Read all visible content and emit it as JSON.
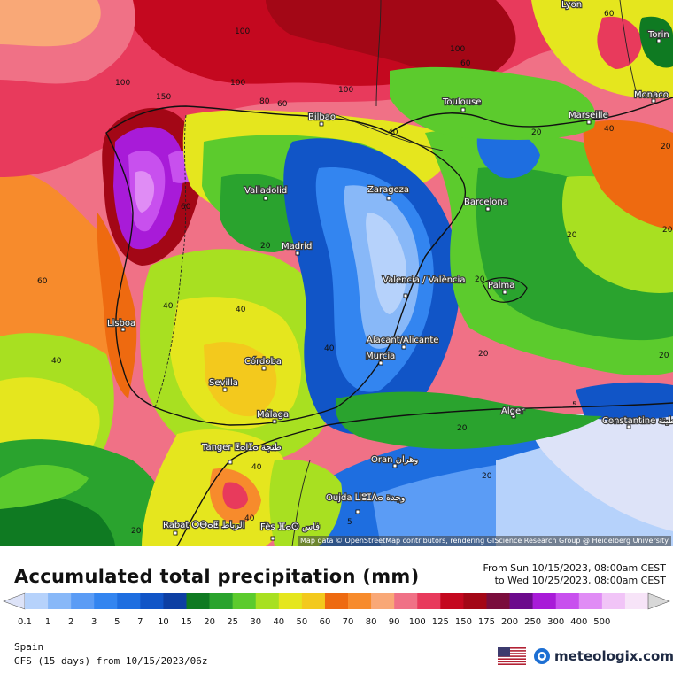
{
  "legend": {
    "title": "Accumulated total precipitation (mm)",
    "period_from": "From Sun 10/15/2023, 08:00am CEST",
    "period_to": "to Wed 10/25/2023, 08:00am CEST",
    "levels": [
      "0.1",
      "1",
      "2",
      "3",
      "5",
      "7",
      "10",
      "15",
      "20",
      "25",
      "30",
      "40",
      "50",
      "60",
      "70",
      "80",
      "90",
      "100",
      "125",
      "150",
      "175",
      "200",
      "250",
      "300",
      "400",
      "500"
    ],
    "colors": [
      "#dde3f8",
      "#b6d2fb",
      "#88b8f8",
      "#5b9cf5",
      "#3385f0",
      "#1e6ee0",
      "#1155c7",
      "#0d3fa3",
      "#0f7a22",
      "#2aa32e",
      "#5ccb2d",
      "#a8e021",
      "#e5e61e",
      "#f3c91d",
      "#ee6a10",
      "#f78b2c",
      "#f9a877",
      "#f07186",
      "#e83a5c",
      "#c4081f",
      "#a30716",
      "#7a0d3c",
      "#6c0a8c",
      "#a81bd8",
      "#c850ee",
      "#e08cf5",
      "#f1c4f7",
      "#f7e4f8",
      "#d8d8d8"
    ]
  },
  "footer": {
    "region": "Spain",
    "model": "GFS (15 days) from  10/15/2023/06z",
    "brand": "meteologix.com",
    "flag_icon": "us-flag-icon",
    "brand_icon": "meteologix-logo-icon"
  },
  "map": {
    "attribution": "Map data © OpenStreetMap contributors, rendering GIScience Research Group @ Heidelberg University",
    "cities": [
      {
        "name": "Lyon"
      },
      {
        "name": "Torin"
      },
      {
        "name": "Monaco"
      },
      {
        "name": "Toulouse"
      },
      {
        "name": "Marseille"
      },
      {
        "name": "Bilbao"
      },
      {
        "name": "Valladolid"
      },
      {
        "name": "Zaragoza"
      },
      {
        "name": "Barcelona"
      },
      {
        "name": "Madrid"
      },
      {
        "name": "Valencia / València"
      },
      {
        "name": "Palma"
      },
      {
        "name": "Lisboa"
      },
      {
        "name": "Alacant/Alicante"
      },
      {
        "name": "Murcia"
      },
      {
        "name": "Córdoba"
      },
      {
        "name": "Sevilla"
      },
      {
        "name": "Málaga"
      },
      {
        "name": "Alger"
      },
      {
        "name": "Constantine قسنطينة"
      },
      {
        "name": "Tanger ⵟⴰⵏⵊⴰ طنجة"
      },
      {
        "name": "Oran وهران"
      },
      {
        "name": "Oujda ⵡⵓⵊⴷⴰ وجدة"
      },
      {
        "name": "Rabat ⵔⴱⴰⵟ الرباط"
      },
      {
        "name": "Fès ⴼⴰⵙ فاس"
      }
    ],
    "contour_labels": [
      "100",
      "100",
      "100",
      "150",
      "100",
      "60",
      "100",
      "80",
      "60",
      "60",
      "40",
      "40",
      "20",
      "60",
      "60",
      "20",
      "20",
      "20",
      "40",
      "40",
      "40",
      "40",
      "20",
      "20",
      "20",
      "20",
      "5",
      "5",
      "40",
      "40",
      "20",
      "20",
      "20"
    ]
  }
}
